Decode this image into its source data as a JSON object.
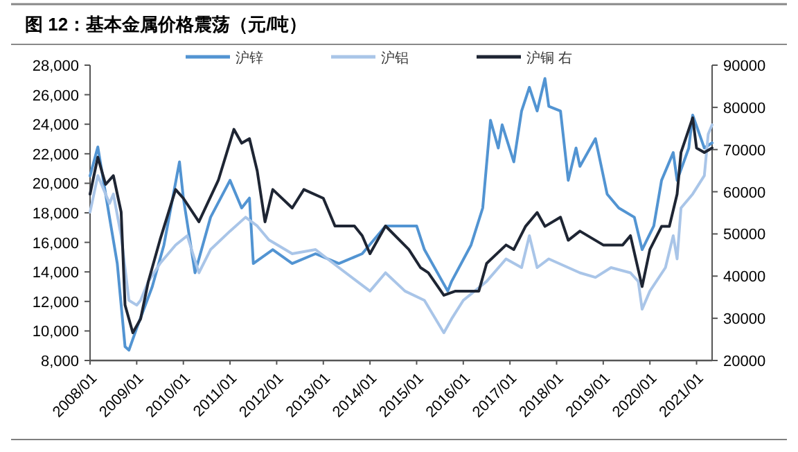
{
  "chart_data": {
    "type": "line",
    "title": "图 12：基本金属价格震荡（元/吨）",
    "legend": "top",
    "xlim": [
      "2008-01",
      "2021-05"
    ],
    "xticks": [
      {
        "value": "2008-01",
        "label": "2008/01"
      },
      {
        "value": "2009-01",
        "label": "2009/01"
      },
      {
        "value": "2010-01",
        "label": "2010/01"
      },
      {
        "value": "2011-01",
        "label": "2011/01"
      },
      {
        "value": "2012-01",
        "label": "2012/01"
      },
      {
        "value": "2013-01",
        "label": "2013/01"
      },
      {
        "value": "2014-01",
        "label": "2014/01"
      },
      {
        "value": "2015-01",
        "label": "2015/01"
      },
      {
        "value": "2016-01",
        "label": "2016/01"
      },
      {
        "value": "2017-01",
        "label": "2017/01"
      },
      {
        "value": "2018-01",
        "label": "2018/01"
      },
      {
        "value": "2019-01",
        "label": "2019/01"
      },
      {
        "value": "2020-01",
        "label": "2020/01"
      },
      {
        "value": "2021-01",
        "label": "2021/01"
      }
    ],
    "ylim": [
      8000,
      28000
    ],
    "yticks": [
      {
        "value": 8000,
        "label": "8,000"
      },
      {
        "value": 10000,
        "label": "10,000"
      },
      {
        "value": 12000,
        "label": "12,000"
      },
      {
        "value": 14000,
        "label": "14,000"
      },
      {
        "value": 16000,
        "label": "16,000"
      },
      {
        "value": 18000,
        "label": "18,000"
      },
      {
        "value": 20000,
        "label": "20,000"
      },
      {
        "value": 22000,
        "label": "22,000"
      },
      {
        "value": 24000,
        "label": "24,000"
      },
      {
        "value": 26000,
        "label": "26,000"
      },
      {
        "value": 28000,
        "label": "28,000"
      }
    ],
    "y2lim": [
      20000,
      90000
    ],
    "y2ticks": [
      20000,
      30000,
      40000,
      50000,
      60000,
      70000,
      80000,
      90000
    ],
    "series": [
      {
        "name": "沪锌",
        "color": "#5294d2",
        "x": [
          "2008-01",
          "2008-03",
          "2008-06",
          "2008-08",
          "2008-10",
          "2008-11",
          "2009-01",
          "2009-05",
          "2009-08",
          "2009-12",
          "2010-01",
          "2010-04",
          "2010-08",
          "2011-01",
          "2011-04",
          "2011-06",
          "2011-07",
          "2011-12",
          "2012-05",
          "2012-11",
          "2013-05",
          "2013-11",
          "2014-05",
          "2015-01",
          "2015-03",
          "2015-09",
          "2015-10",
          "2016-03",
          "2016-06",
          "2016-08",
          "2016-10",
          "2016-11",
          "2017-02",
          "2017-04",
          "2017-06",
          "2017-08",
          "2017-10",
          "2017-11",
          "2018-02",
          "2018-04",
          "2018-06",
          "2018-07",
          "2018-11",
          "2019-02",
          "2019-05",
          "2019-09",
          "2019-11",
          "2020-02",
          "2020-04",
          "2020-07",
          "2020-08",
          "2020-11",
          "2020-12",
          "2021-03",
          "2021-05"
        ],
        "values": [
          20500,
          22460,
          17700,
          14570,
          8940,
          8700,
          10190,
          13000,
          15820,
          21450,
          19000,
          13940,
          17700,
          20200,
          18330,
          19000,
          14570,
          15510,
          14570,
          15230,
          14570,
          15230,
          17110,
          17110,
          15510,
          12700,
          13360,
          15820,
          18330,
          24270,
          22390,
          23960,
          21450,
          24900,
          26500,
          24900,
          27100,
          25210,
          24900,
          20200,
          22390,
          21150,
          23020,
          19270,
          18330,
          17700,
          15510,
          17110,
          20200,
          22080,
          20200,
          22390,
          24620,
          22390,
          22740
        ]
      },
      {
        "name": "沪铝",
        "color": "#a9c5e8",
        "x": [
          "2008-01",
          "2008-03",
          "2008-06",
          "2008-07",
          "2008-09",
          "2008-11",
          "2009-01",
          "2009-02",
          "2009-04",
          "2009-07",
          "2009-11",
          "2010-02",
          "2010-05",
          "2010-08",
          "2011-01",
          "2011-05",
          "2011-08",
          "2011-11",
          "2012-05",
          "2012-11",
          "2013-05",
          "2014-01",
          "2014-05",
          "2014-10",
          "2015-03",
          "2015-08",
          "2015-10",
          "2016-01",
          "2016-07",
          "2016-12",
          "2017-04",
          "2017-06",
          "2017-08",
          "2017-11",
          "2018-04",
          "2018-07",
          "2018-11",
          "2019-03",
          "2019-08",
          "2019-10",
          "2019-11",
          "2020-01",
          "2020-05",
          "2020-07",
          "2020-08",
          "2020-09",
          "2020-12",
          "2021-03",
          "2021-04",
          "2021-05"
        ],
        "values": [
          18050,
          20520,
          18640,
          19270,
          16450,
          12070,
          11750,
          12070,
          13360,
          14570,
          15820,
          16450,
          13940,
          15510,
          16760,
          17700,
          17110,
          16170,
          15230,
          15510,
          14290,
          12700,
          13940,
          12700,
          12070,
          9880,
          10820,
          12070,
          13360,
          14880,
          14290,
          16450,
          14290,
          14880,
          14290,
          13940,
          13630,
          14290,
          13940,
          13360,
          11470,
          12700,
          14290,
          16450,
          14880,
          18330,
          19270,
          20520,
          23330,
          23960
        ]
      },
      {
        "name": "沪铜 右",
        "color": "#1e2533",
        "axis": "y2",
        "x": [
          "2008-01",
          "2008-03",
          "2008-05",
          "2008-07",
          "2008-09",
          "2008-10",
          "2008-12",
          "2009-02",
          "2009-04",
          "2009-07",
          "2009-11",
          "2010-01",
          "2010-05",
          "2010-10",
          "2011-02",
          "2011-04",
          "2011-06",
          "2011-08",
          "2011-10",
          "2011-12",
          "2012-05",
          "2012-08",
          "2013-01",
          "2013-04",
          "2013-09",
          "2013-11",
          "2014-01",
          "2014-05",
          "2014-11",
          "2015-02",
          "2015-04",
          "2015-08",
          "2015-11",
          "2016-05",
          "2016-07",
          "2016-12",
          "2017-02",
          "2017-05",
          "2017-08",
          "2017-10",
          "2018-02",
          "2018-04",
          "2018-07",
          "2019-01",
          "2019-06",
          "2019-08",
          "2019-11",
          "2020-01",
          "2020-04",
          "2020-06",
          "2020-08",
          "2020-09",
          "2020-12",
          "2021-01",
          "2021-03",
          "2021-05"
        ],
        "values": [
          59440,
          68210,
          61740,
          63810,
          55170,
          33150,
          26580,
          29860,
          38740,
          48600,
          60520,
          58450,
          52870,
          62730,
          74790,
          71500,
          72580,
          64930,
          52870,
          60520,
          56150,
          60520,
          58450,
          51880,
          51880,
          49580,
          45310,
          51880,
          46300,
          42020,
          40810,
          35450,
          36440,
          36440,
          43010,
          47380,
          46300,
          51780,
          55070,
          51780,
          53960,
          48500,
          50670,
          47380,
          47380,
          49580,
          37520,
          46300,
          51780,
          51780,
          59440,
          69300,
          77510,
          70380,
          69300,
          70380
        ]
      }
    ]
  }
}
